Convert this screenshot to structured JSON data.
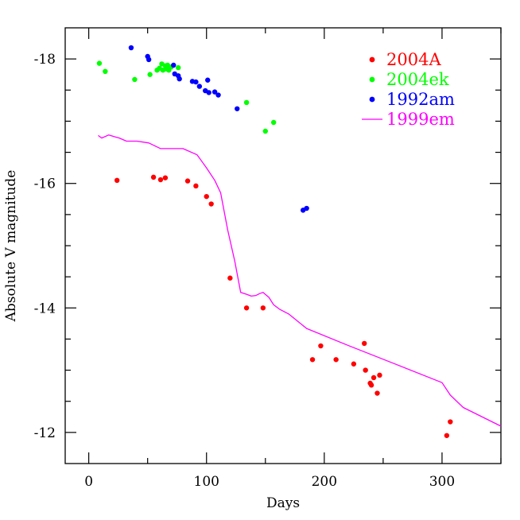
{
  "chart_data": {
    "type": "scatter",
    "title": "",
    "xlabel": "Days",
    "ylabel": "Absolute V magnitude",
    "xlim": [
      -20,
      350
    ],
    "ylim": [
      -11.5,
      -18.5
    ],
    "y_inverted": true,
    "x_ticks": [
      "0",
      "100",
      "200",
      "300"
    ],
    "y_ticks": [
      "-18",
      "-16",
      "-14",
      "-12"
    ],
    "legend_position": "top-right",
    "grid": false,
    "series": [
      {
        "name": "2004A",
        "kind": "points",
        "color": "#ff0000",
        "x": [
          24,
          55,
          61,
          65,
          84,
          91,
          100,
          104,
          120,
          134,
          148,
          190,
          197,
          210,
          225,
          234,
          235,
          239,
          240,
          242,
          245,
          247,
          304,
          307
        ],
        "y": [
          -16.05,
          -16.1,
          -16.06,
          -16.09,
          -16.04,
          -15.96,
          -15.79,
          -15.67,
          -14.48,
          -14.0,
          -14.0,
          -13.17,
          -13.39,
          -13.17,
          -13.1,
          -13.43,
          -13.0,
          -12.79,
          -12.76,
          -12.88,
          -12.63,
          -12.92,
          -11.95,
          -12.17
        ]
      },
      {
        "name": "2004ek",
        "kind": "points",
        "color": "#00ff00",
        "x": [
          9,
          14,
          39,
          52,
          58,
          60,
          62,
          63,
          65,
          66,
          67,
          68,
          70,
          76,
          134,
          150,
          157
        ],
        "y": [
          -17.93,
          -17.8,
          -17.67,
          -17.75,
          -17.82,
          -17.85,
          -17.92,
          -17.82,
          -17.89,
          -17.84,
          -17.9,
          -17.82,
          -17.87,
          -17.86,
          -17.3,
          -16.84,
          -16.98
        ]
      },
      {
        "name": "1992am",
        "kind": "points",
        "color": "#0000ff",
        "x": [
          36,
          50,
          51,
          72,
          73,
          76,
          77,
          88,
          91,
          94,
          99,
          101,
          102,
          107,
          110,
          126,
          182,
          185
        ],
        "y": [
          -18.18,
          -18.04,
          -17.99,
          -17.9,
          -17.76,
          -17.73,
          -17.68,
          -17.64,
          -17.63,
          -17.56,
          -17.49,
          -17.66,
          -17.46,
          -17.47,
          -17.42,
          -17.2,
          -15.57,
          -15.6
        ]
      },
      {
        "name": "1999em",
        "kind": "line",
        "color": "#ff00ff",
        "x": [
          8,
          11,
          17,
          22,
          26,
          32,
          41,
          51,
          61,
          71,
          80,
          92,
          100,
          107,
          112,
          118,
          124,
          129,
          134,
          138,
          142,
          145,
          148,
          153,
          157,
          162,
          170,
          185,
          220,
          260,
          300,
          307,
          318,
          350
        ],
        "y": [
          -16.77,
          -16.73,
          -16.78,
          -16.75,
          -16.73,
          -16.68,
          -16.68,
          -16.65,
          -16.56,
          -16.56,
          -16.56,
          -16.46,
          -16.25,
          -16.05,
          -15.85,
          -15.25,
          -14.75,
          -14.25,
          -14.22,
          -14.19,
          -14.2,
          -14.23,
          -14.25,
          -14.17,
          -14.05,
          -13.98,
          -13.9,
          -13.67,
          -13.4,
          -13.1,
          -12.8,
          -12.6,
          -12.4,
          -12.1
        ]
      }
    ]
  }
}
